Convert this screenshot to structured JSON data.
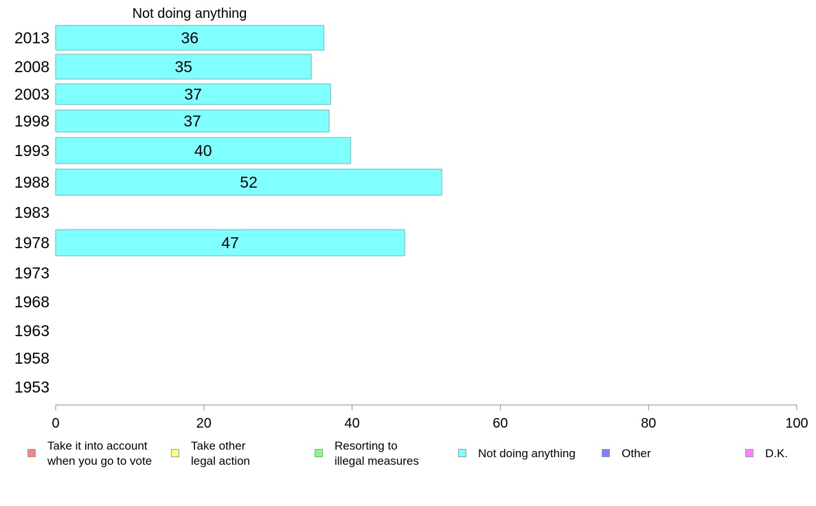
{
  "chart_data": {
    "type": "bar",
    "orientation": "horizontal",
    "title": "Not doing anything",
    "categories": [
      "2013",
      "2008",
      "2003",
      "1998",
      "1993",
      "1988",
      "1983",
      "1978",
      "1973",
      "1968",
      "1963",
      "1958",
      "1953"
    ],
    "values": [
      36.2,
      34.5,
      37.1,
      36.9,
      39.8,
      52.1,
      null,
      47.1,
      null,
      null,
      null,
      null,
      null
    ],
    "data_labels": [
      "36",
      "35",
      "37",
      "37",
      "40",
      "52",
      "",
      "47",
      "",
      "",
      "",
      "",
      ""
    ],
    "xlim": [
      0,
      100
    ],
    "xticks": [
      "0",
      "20",
      "40",
      "60",
      "80",
      "100"
    ],
    "bar_color": "#80ffff",
    "bar_border": "#66bbbb",
    "legend_position": "bottom",
    "legend": [
      {
        "label": "Take it into account\nwhen you go to vote",
        "color": "#ff8080"
      },
      {
        "label": "Take other\nlegal action",
        "color": "#ffff80"
      },
      {
        "label": "Resorting to\nillegal measures",
        "color": "#80ff80"
      },
      {
        "label": "Not doing anything",
        "color": "#80ffff"
      },
      {
        "label": "Other",
        "color": "#8080ff"
      },
      {
        "label": "D.K.",
        "color": "#ff80ff"
      }
    ]
  }
}
